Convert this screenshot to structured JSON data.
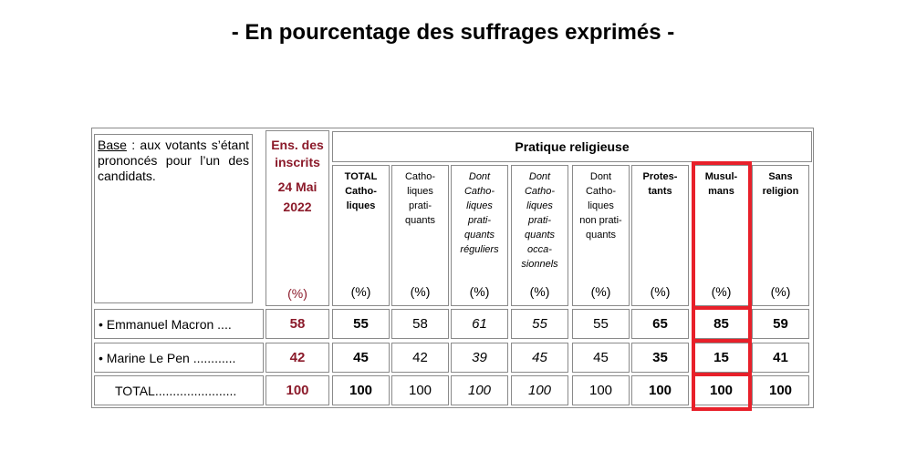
{
  "title": "- En pourcentage des suffrages exprimés -",
  "base": {
    "label": "Base",
    "text": " : aux votants s’étant prononcés pour l’un des candidats."
  },
  "ens": {
    "line1": "Ens. des",
    "line2": "inscrits",
    "line3": "24 Mai",
    "line4": "2022",
    "pct": "(%)"
  },
  "group_header": "Pratique religieuse",
  "columns": [
    {
      "label": "TOTAL\nCatho-\nliques",
      "pct": "(%)"
    },
    {
      "label": "Catho-\nliques\nprati-\nquants",
      "pct": "(%)"
    },
    {
      "label": "Dont\nCatho-\nliques\nprati-\nquants\nréguliers",
      "pct": "(%)"
    },
    {
      "label": "Dont\nCatho-\nliques\nprati-\nquants\nocca-\nsionnels",
      "pct": "(%)"
    },
    {
      "label": "Dont\nCatho-\nliques\nnon prati-\nquants",
      "pct": "(%)"
    },
    {
      "label": "Protes-\ntants",
      "pct": "(%)"
    },
    {
      "label": "Musul-\nmans",
      "pct": "(%)"
    },
    {
      "label": "Sans\nreligion",
      "pct": "(%)"
    }
  ],
  "rows": [
    {
      "label": "• Emmanuel Macron ....",
      "ens": "58",
      "values": [
        "55",
        "58",
        "61",
        "55",
        "55",
        "65",
        "85",
        "59"
      ]
    },
    {
      "label": "• Marine Le Pen ............",
      "ens": "42",
      "values": [
        "45",
        "42",
        "39",
        "45",
        "45",
        "35",
        "15",
        "41"
      ]
    },
    {
      "label": "TOTAL.......................",
      "ens": "100",
      "values": [
        "100",
        "100",
        "100",
        "100",
        "100",
        "100",
        "100",
        "100"
      ]
    }
  ],
  "colors": {
    "accent": "#8b1a2a",
    "highlight": "#e8202a",
    "border": "#8a8a8a"
  }
}
